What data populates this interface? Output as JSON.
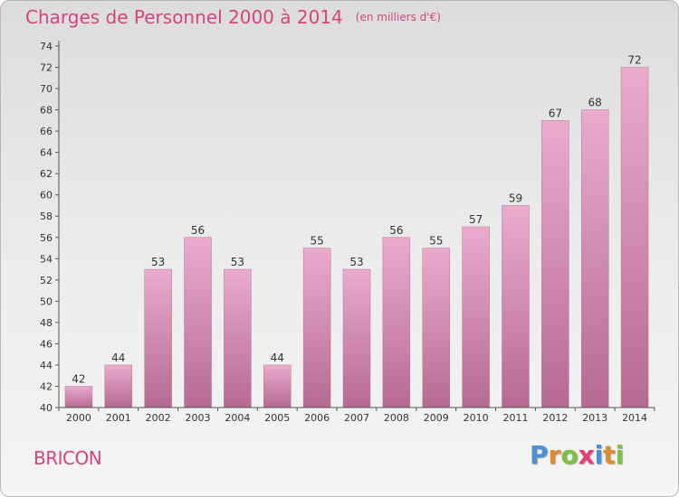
{
  "header": {
    "title": "Charges de Personnel 2000 à 2014",
    "subtitle": "(en milliers d'€)"
  },
  "footer": {
    "place": "BRICON",
    "logo_text": "Proxiti",
    "logo_colors": [
      "#4a90d9",
      "#e2892b",
      "#7cc242",
      "#e63e7a",
      "#4a90d9",
      "#e2892b",
      "#7cc242"
    ]
  },
  "chart_data": {
    "type": "bar",
    "title": "Charges de Personnel 2000 à 2014",
    "subtitle": "(en milliers d'€)",
    "categories": [
      "2000",
      "2001",
      "2002",
      "2003",
      "2004",
      "2005",
      "2006",
      "2007",
      "2008",
      "2009",
      "2010",
      "2011",
      "2012",
      "2013",
      "2014"
    ],
    "values": [
      42,
      44,
      53,
      56,
      53,
      44,
      55,
      53,
      56,
      55,
      57,
      59,
      67,
      68,
      72
    ],
    "ylim": [
      40,
      74
    ],
    "ytick_step": 2,
    "grid": false,
    "bar_color_top": "#eaabcd",
    "bar_color_bottom": "#b56a92",
    "axis_color": "#555555"
  }
}
